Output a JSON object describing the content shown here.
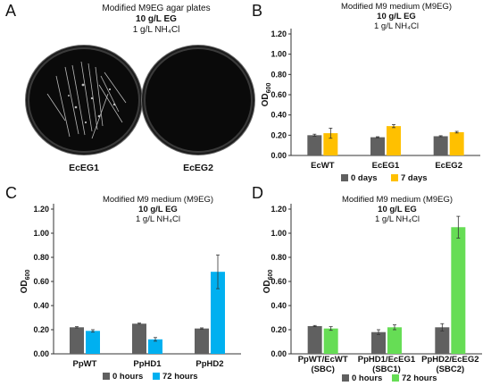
{
  "panels": {
    "A": {
      "letter": "A",
      "title_line1": "Modified M9EG agar plates",
      "title_line2": "10 g/L EG",
      "title_line3": "1 g/L NH₄Cl",
      "plates": [
        {
          "label": "EcEG1"
        },
        {
          "label": "EcEG2"
        }
      ]
    },
    "B": {
      "letter": "B"
    },
    "C": {
      "letter": "C"
    },
    "D": {
      "letter": "D"
    }
  },
  "chart_data": [
    {
      "panel": "B",
      "type": "bar",
      "title_lines": [
        "Modified M9 medium (M9EG)",
        "10 g/L EG",
        "1 g/L NH₄Cl"
      ],
      "title_bold": [
        false,
        true,
        false
      ],
      "ylabel": "OD",
      "ylabel_sub": "600",
      "ylim": [
        0,
        1.2
      ],
      "yticks": [
        "0.00",
        "0.20",
        "0.40",
        "0.60",
        "0.80",
        "1.00",
        "1.20"
      ],
      "categories": [
        [
          "EcWT"
        ],
        [
          "EcEG1"
        ],
        [
          "EcEG2"
        ]
      ],
      "series": [
        {
          "name": "0 days",
          "color": "#606060",
          "values": [
            0.2,
            0.18,
            0.19
          ],
          "errors": [
            0.01,
            0.005,
            0.005
          ]
        },
        {
          "name": "7 days",
          "color": "#FFC000",
          "values": [
            0.22,
            0.29,
            0.23
          ],
          "errors": [
            0.05,
            0.015,
            0.008
          ]
        }
      ],
      "legend": "bottom"
    },
    {
      "panel": "C",
      "type": "bar",
      "title_lines": [
        "Modified M9 medium (M9EG)",
        "10 g/L EG",
        "1 g/L NH₄Cl"
      ],
      "title_bold": [
        false,
        true,
        false
      ],
      "ylabel": "OD",
      "ylabel_sub": "600",
      "ylim": [
        0,
        1.2
      ],
      "yticks": [
        "0.00",
        "0.20",
        "0.40",
        "0.60",
        "0.80",
        "1.00",
        "1.20"
      ],
      "categories": [
        [
          "PpWT"
        ],
        [
          "PpHD1"
        ],
        [
          "PpHD2"
        ]
      ],
      "series": [
        {
          "name": "0 hours",
          "color": "#606060",
          "values": [
            0.22,
            0.25,
            0.21
          ],
          "errors": [
            0.005,
            0.005,
            0.005
          ]
        },
        {
          "name": "72 hours",
          "color": "#00B0F0",
          "values": [
            0.19,
            0.12,
            0.68
          ],
          "errors": [
            0.01,
            0.015,
            0.14
          ]
        }
      ],
      "legend": "bottom"
    },
    {
      "panel": "D",
      "type": "bar",
      "title_lines": [
        "Modified M9 medium (M9EG)",
        "10 g/L EG",
        "1 g/L NH₄Cl"
      ],
      "title_bold": [
        false,
        true,
        false
      ],
      "ylabel": "OD",
      "ylabel_sub": "600",
      "ylim": [
        0,
        1.2
      ],
      "yticks": [
        "0.00",
        "0.20",
        "0.40",
        "0.60",
        "0.80",
        "1.00",
        "1.20"
      ],
      "categories": [
        [
          "PpWT/EcWT",
          "(SBC)"
        ],
        [
          "PpHD1/EcEG1",
          "(SBC1)"
        ],
        [
          "PpHD2/EcEG2",
          "(SBC2)"
        ]
      ],
      "series": [
        {
          "name": "0 hours",
          "color": "#606060",
          "values": [
            0.23,
            0.18,
            0.22
          ],
          "errors": [
            0.005,
            0.02,
            0.03
          ]
        },
        {
          "name": "72 hours",
          "color": "#66DD55",
          "values": [
            0.21,
            0.22,
            1.05
          ],
          "errors": [
            0.015,
            0.02,
            0.09
          ]
        }
      ],
      "legend": "bottom"
    }
  ]
}
